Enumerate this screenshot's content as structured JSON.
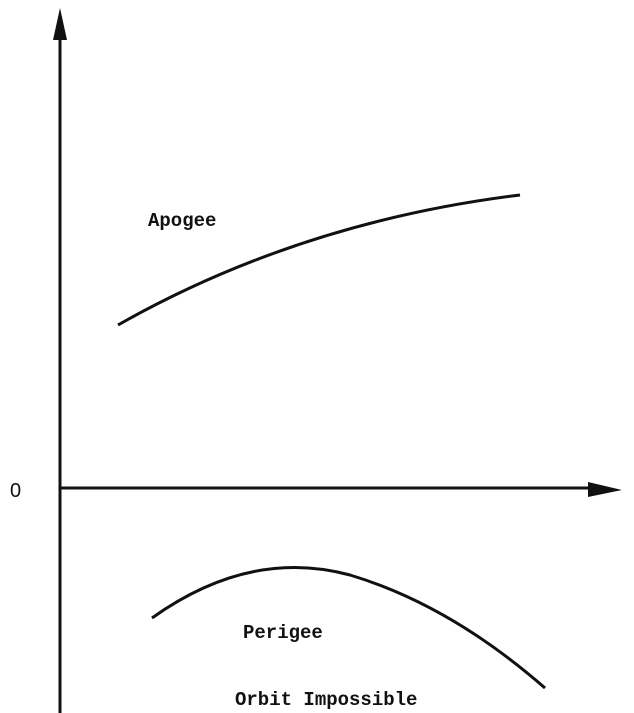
{
  "axis": {
    "origin_label": "0"
  },
  "curves": [
    {
      "label": "Apogee"
    },
    {
      "label": "Perigee"
    }
  ],
  "region_label": "Orbit Impossible"
}
